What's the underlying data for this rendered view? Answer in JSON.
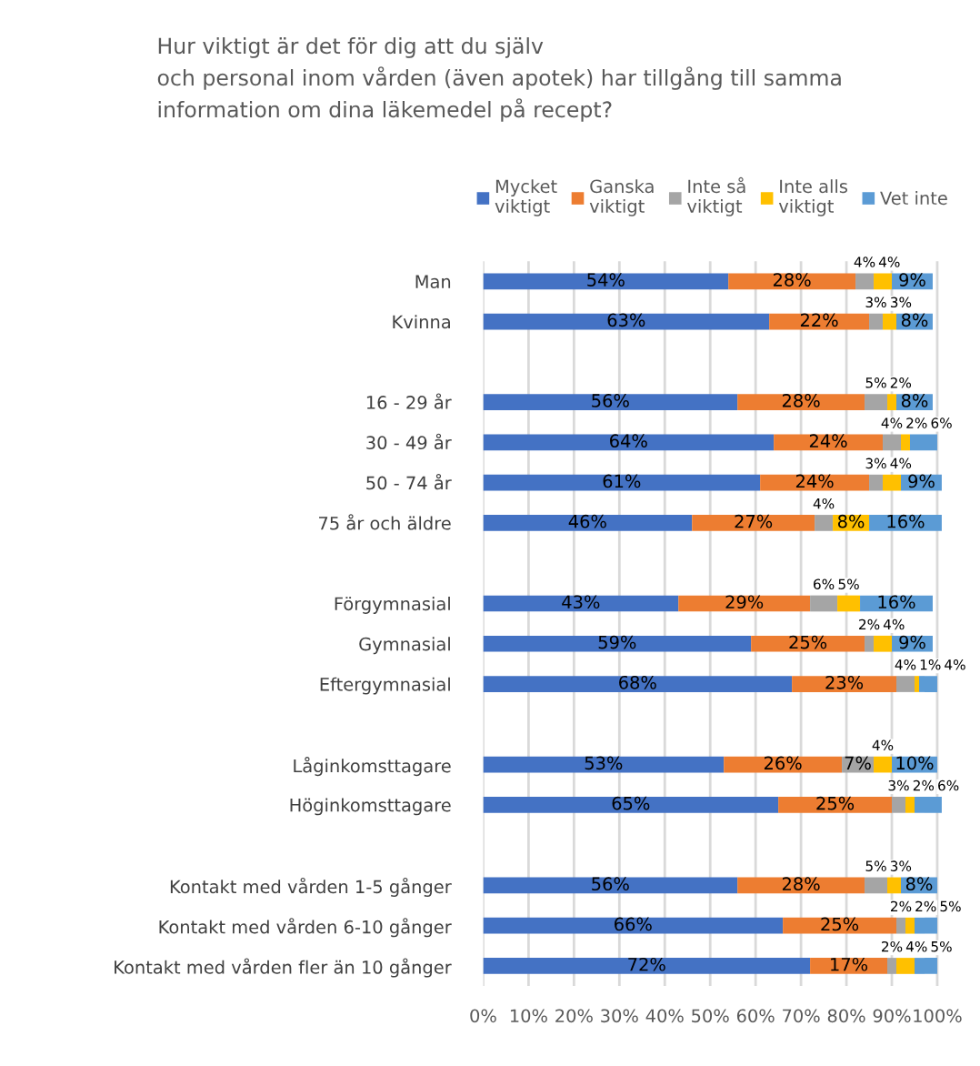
{
  "chart_data": {
    "type": "bar",
    "orientation": "horizontal",
    "stacked": true,
    "title": "Hur viktigt är det för dig att du själv\noch personal inom vården (även apotek) har tillgång till samma\ninformation om dina läkemedel på recept?",
    "categories": [
      "Man",
      "Kvinna",
      null,
      "16 - 29 år",
      "30 - 49 år",
      "50 - 74 år",
      "75 år och äldre",
      null,
      "Förgymnasial",
      "Gymnasial",
      "Eftergymnasial",
      null,
      "Låginkomsttagare",
      "Höginkomsttagare",
      null,
      "Kontakt med vården 1-5 gånger",
      "Kontakt med vården 6-10 gånger",
      "Kontakt med vården fler än 10 gånger"
    ],
    "series": [
      {
        "name": "Mycket\nviktigt",
        "color": "#4472c4",
        "values": [
          54,
          63,
          null,
          56,
          64,
          61,
          46,
          null,
          43,
          59,
          68,
          null,
          53,
          65,
          null,
          56,
          66,
          72
        ],
        "value_labels": [
          "54%",
          "63%",
          null,
          "56%",
          "64%",
          "61%",
          "46%",
          null,
          "43%",
          "59%",
          "68%",
          null,
          "53%",
          "65%",
          null,
          "56%",
          "66%",
          "72%"
        ]
      },
      {
        "name": "Ganska\nviktigt",
        "color": "#ed7d31",
        "values": [
          28,
          22,
          null,
          28,
          24,
          24,
          27,
          null,
          29,
          25,
          23,
          null,
          26,
          25,
          null,
          28,
          25,
          17
        ],
        "value_labels": [
          "28%",
          "22%",
          null,
          "28%",
          "24%",
          "24%",
          "27%",
          null,
          "29%",
          "25%",
          "23%",
          null,
          "26%",
          "25%",
          null,
          "28%",
          "25%",
          "17%"
        ]
      },
      {
        "name": "Inte så\nviktigt",
        "color": "#a5a5a5",
        "values": [
          4,
          3,
          null,
          5,
          4,
          3,
          4,
          null,
          6,
          2,
          4,
          null,
          7,
          3,
          null,
          5,
          2,
          2
        ],
        "value_labels": [
          "4%",
          "3%",
          null,
          "5%",
          "4%",
          "3%",
          "4%",
          null,
          "6%",
          "2%",
          "4%",
          null,
          "7%",
          "3%",
          null,
          "5%",
          "2%",
          "2%"
        ]
      },
      {
        "name": "Inte alls\nviktigt",
        "color": "#ffc000",
        "values": [
          4,
          3,
          null,
          2,
          2,
          4,
          8,
          null,
          5,
          4,
          1,
          null,
          4,
          2,
          null,
          3,
          2,
          4
        ],
        "value_labels": [
          "4%",
          "3%",
          null,
          "2%",
          "2%",
          "4%",
          "8%",
          null,
          "5%",
          "4%",
          "1%",
          null,
          "4%",
          "2%",
          null,
          "3%",
          "2%",
          "4%"
        ]
      },
      {
        "name": "Vet inte",
        "color": "#5b9bd5",
        "values": [
          9,
          8,
          null,
          8,
          6,
          9,
          16,
          null,
          16,
          9,
          4,
          null,
          10,
          6,
          null,
          8,
          5,
          5
        ],
        "value_labels": [
          "9%",
          "8%",
          null,
          "8%",
          "6%",
          "9%",
          "16%",
          null,
          "16%",
          "9%",
          "4%",
          null,
          "10%",
          "6%",
          null,
          "8%",
          "5%",
          "5%"
        ]
      }
    ],
    "xlim": [
      0,
      101
    ],
    "xticks": [
      {
        "value": 0,
        "label": "0%"
      },
      {
        "value": 10,
        "label": "10%"
      },
      {
        "value": 20,
        "label": "20%"
      },
      {
        "value": 30,
        "label": "30%"
      },
      {
        "value": 40,
        "label": "40%"
      },
      {
        "value": 50,
        "label": "50%"
      },
      {
        "value": 60,
        "label": "60%"
      },
      {
        "value": 70,
        "label": "70%"
      },
      {
        "value": 80,
        "label": "80%"
      },
      {
        "value": 90,
        "label": "90%"
      },
      {
        "value": 100,
        "label": "100%"
      }
    ],
    "grid": "x",
    "legend": "top"
  }
}
